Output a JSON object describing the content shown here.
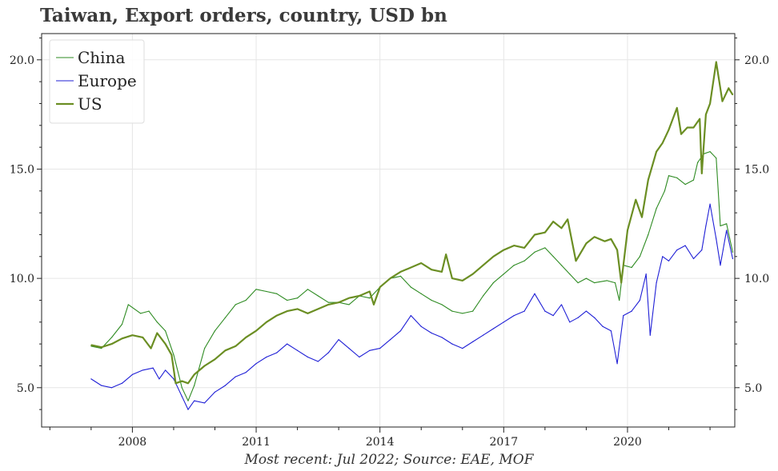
{
  "title": "Taiwan, Export orders, country, USD bn",
  "footnote": "Most recent: Jul 2022; Source: EAE, MOF",
  "chart_data": {
    "type": "line",
    "title": "Taiwan, Export orders, country, USD bn",
    "xlabel": "",
    "ylabel": "",
    "x_range": [
      2005.8,
      2022.6
    ],
    "ylim": [
      3.2,
      21.2
    ],
    "x_ticks": [
      2008,
      2011,
      2014,
      2017,
      2020
    ],
    "y_ticks": [
      5.0,
      10.0,
      15.0,
      20.0
    ],
    "x_tick_labels": [
      "2008",
      "2011",
      "2014",
      "2017",
      "2020"
    ],
    "y_tick_labels": [
      "5.0",
      "10.0",
      "15.0",
      "20.0"
    ],
    "grid": true,
    "legend_position": "top-left",
    "series": [
      {
        "name": "China",
        "color": "#2e8b22",
        "width": 1.1,
        "points": [
          [
            2007.0,
            6.9
          ],
          [
            2007.25,
            6.8
          ],
          [
            2007.5,
            7.3
          ],
          [
            2007.75,
            7.9
          ],
          [
            2007.9,
            8.8
          ],
          [
            2008.2,
            8.4
          ],
          [
            2008.4,
            8.5
          ],
          [
            2008.6,
            8.0
          ],
          [
            2008.8,
            7.6
          ],
          [
            2009.0,
            6.5
          ],
          [
            2009.2,
            5.0
          ],
          [
            2009.35,
            4.4
          ],
          [
            2009.5,
            5.1
          ],
          [
            2009.75,
            6.8
          ],
          [
            2010.0,
            7.6
          ],
          [
            2010.25,
            8.2
          ],
          [
            2010.5,
            8.8
          ],
          [
            2010.75,
            9.0
          ],
          [
            2011.0,
            9.5
          ],
          [
            2011.25,
            9.4
          ],
          [
            2011.5,
            9.3
          ],
          [
            2011.75,
            9.0
          ],
          [
            2012.0,
            9.1
          ],
          [
            2012.25,
            9.5
          ],
          [
            2012.5,
            9.2
          ],
          [
            2012.75,
            8.9
          ],
          [
            2013.0,
            8.9
          ],
          [
            2013.25,
            8.8
          ],
          [
            2013.5,
            9.2
          ],
          [
            2013.75,
            9.1
          ],
          [
            2014.0,
            9.6
          ],
          [
            2014.25,
            10.0
          ],
          [
            2014.5,
            10.1
          ],
          [
            2014.75,
            9.6
          ],
          [
            2015.0,
            9.3
          ],
          [
            2015.25,
            9.0
          ],
          [
            2015.5,
            8.8
          ],
          [
            2015.75,
            8.5
          ],
          [
            2016.0,
            8.4
          ],
          [
            2016.25,
            8.5
          ],
          [
            2016.5,
            9.2
          ],
          [
            2016.75,
            9.8
          ],
          [
            2017.0,
            10.2
          ],
          [
            2017.25,
            10.6
          ],
          [
            2017.5,
            10.8
          ],
          [
            2017.75,
            11.2
          ],
          [
            2018.0,
            11.4
          ],
          [
            2018.2,
            11.0
          ],
          [
            2018.4,
            10.6
          ],
          [
            2018.6,
            10.2
          ],
          [
            2018.8,
            9.8
          ],
          [
            2019.0,
            10.0
          ],
          [
            2019.2,
            9.8
          ],
          [
            2019.5,
            9.9
          ],
          [
            2019.7,
            9.8
          ],
          [
            2019.8,
            9.0
          ],
          [
            2019.9,
            10.6
          ],
          [
            2020.1,
            10.5
          ],
          [
            2020.3,
            11.0
          ],
          [
            2020.5,
            12.0
          ],
          [
            2020.7,
            13.2
          ],
          [
            2020.9,
            14.0
          ],
          [
            2021.0,
            14.7
          ],
          [
            2021.2,
            14.6
          ],
          [
            2021.4,
            14.3
          ],
          [
            2021.6,
            14.5
          ],
          [
            2021.7,
            15.3
          ],
          [
            2021.85,
            15.7
          ],
          [
            2022.0,
            15.8
          ],
          [
            2022.15,
            15.5
          ],
          [
            2022.25,
            12.4
          ],
          [
            2022.4,
            12.5
          ],
          [
            2022.55,
            11.2
          ]
        ]
      },
      {
        "name": "Europe",
        "color": "#1f1fd6",
        "width": 1.1,
        "points": [
          [
            2007.0,
            5.4
          ],
          [
            2007.25,
            5.1
          ],
          [
            2007.5,
            5.0
          ],
          [
            2007.75,
            5.2
          ],
          [
            2008.0,
            5.6
          ],
          [
            2008.25,
            5.8
          ],
          [
            2008.5,
            5.9
          ],
          [
            2008.65,
            5.4
          ],
          [
            2008.8,
            5.8
          ],
          [
            2009.0,
            5.4
          ],
          [
            2009.2,
            4.6
          ],
          [
            2009.35,
            4.0
          ],
          [
            2009.5,
            4.4
          ],
          [
            2009.75,
            4.3
          ],
          [
            2010.0,
            4.8
          ],
          [
            2010.25,
            5.1
          ],
          [
            2010.5,
            5.5
          ],
          [
            2010.75,
            5.7
          ],
          [
            2011.0,
            6.1
          ],
          [
            2011.25,
            6.4
          ],
          [
            2011.5,
            6.6
          ],
          [
            2011.75,
            7.0
          ],
          [
            2012.0,
            6.7
          ],
          [
            2012.25,
            6.4
          ],
          [
            2012.5,
            6.2
          ],
          [
            2012.75,
            6.6
          ],
          [
            2013.0,
            7.2
          ],
          [
            2013.25,
            6.8
          ],
          [
            2013.5,
            6.4
          ],
          [
            2013.75,
            6.7
          ],
          [
            2014.0,
            6.8
          ],
          [
            2014.25,
            7.2
          ],
          [
            2014.5,
            7.6
          ],
          [
            2014.75,
            8.3
          ],
          [
            2015.0,
            7.8
          ],
          [
            2015.25,
            7.5
          ],
          [
            2015.5,
            7.3
          ],
          [
            2015.75,
            7.0
          ],
          [
            2016.0,
            6.8
          ],
          [
            2016.25,
            7.1
          ],
          [
            2016.5,
            7.4
          ],
          [
            2016.75,
            7.7
          ],
          [
            2017.0,
            8.0
          ],
          [
            2017.25,
            8.3
          ],
          [
            2017.5,
            8.5
          ],
          [
            2017.75,
            9.3
          ],
          [
            2018.0,
            8.5
          ],
          [
            2018.2,
            8.3
          ],
          [
            2018.4,
            8.8
          ],
          [
            2018.6,
            8.0
          ],
          [
            2018.8,
            8.2
          ],
          [
            2019.0,
            8.5
          ],
          [
            2019.2,
            8.2
          ],
          [
            2019.4,
            7.8
          ],
          [
            2019.6,
            7.6
          ],
          [
            2019.75,
            6.1
          ],
          [
            2019.9,
            8.3
          ],
          [
            2020.1,
            8.5
          ],
          [
            2020.3,
            9.0
          ],
          [
            2020.45,
            10.2
          ],
          [
            2020.55,
            7.4
          ],
          [
            2020.7,
            9.8
          ],
          [
            2020.85,
            11.0
          ],
          [
            2021.0,
            10.8
          ],
          [
            2021.2,
            11.3
          ],
          [
            2021.4,
            11.5
          ],
          [
            2021.6,
            10.9
          ],
          [
            2021.8,
            11.3
          ],
          [
            2021.9,
            12.4
          ],
          [
            2022.0,
            13.4
          ],
          [
            2022.15,
            11.8
          ],
          [
            2022.25,
            10.6
          ],
          [
            2022.4,
            12.2
          ],
          [
            2022.55,
            10.9
          ]
        ]
      },
      {
        "name": "US",
        "color": "#6b8e23",
        "width": 2.2,
        "points": [
          [
            2007.0,
            6.95
          ],
          [
            2007.25,
            6.85
          ],
          [
            2007.5,
            7.0
          ],
          [
            2007.75,
            7.25
          ],
          [
            2008.0,
            7.4
          ],
          [
            2008.25,
            7.3
          ],
          [
            2008.45,
            6.8
          ],
          [
            2008.6,
            7.5
          ],
          [
            2008.8,
            7.0
          ],
          [
            2008.95,
            6.5
          ],
          [
            2009.05,
            5.2
          ],
          [
            2009.2,
            5.3
          ],
          [
            2009.35,
            5.2
          ],
          [
            2009.5,
            5.6
          ],
          [
            2009.75,
            6.0
          ],
          [
            2010.0,
            6.3
          ],
          [
            2010.25,
            6.7
          ],
          [
            2010.5,
            6.9
          ],
          [
            2010.75,
            7.3
          ],
          [
            2011.0,
            7.6
          ],
          [
            2011.25,
            8.0
          ],
          [
            2011.5,
            8.3
          ],
          [
            2011.75,
            8.5
          ],
          [
            2012.0,
            8.6
          ],
          [
            2012.25,
            8.4
          ],
          [
            2012.5,
            8.6
          ],
          [
            2012.75,
            8.8
          ],
          [
            2013.0,
            8.9
          ],
          [
            2013.25,
            9.1
          ],
          [
            2013.5,
            9.2
          ],
          [
            2013.75,
            9.4
          ],
          [
            2013.85,
            8.8
          ],
          [
            2014.0,
            9.6
          ],
          [
            2014.25,
            10.0
          ],
          [
            2014.5,
            10.3
          ],
          [
            2014.75,
            10.5
          ],
          [
            2015.0,
            10.7
          ],
          [
            2015.25,
            10.4
          ],
          [
            2015.5,
            10.3
          ],
          [
            2015.6,
            11.1
          ],
          [
            2015.75,
            10.0
          ],
          [
            2016.0,
            9.9
          ],
          [
            2016.25,
            10.2
          ],
          [
            2016.5,
            10.6
          ],
          [
            2016.75,
            11.0
          ],
          [
            2017.0,
            11.3
          ],
          [
            2017.25,
            11.5
          ],
          [
            2017.5,
            11.4
          ],
          [
            2017.75,
            12.0
          ],
          [
            2018.0,
            12.1
          ],
          [
            2018.2,
            12.6
          ],
          [
            2018.4,
            12.3
          ],
          [
            2018.55,
            12.7
          ],
          [
            2018.75,
            10.8
          ],
          [
            2019.0,
            11.6
          ],
          [
            2019.2,
            11.9
          ],
          [
            2019.45,
            11.7
          ],
          [
            2019.6,
            11.8
          ],
          [
            2019.75,
            11.3
          ],
          [
            2019.85,
            9.8
          ],
          [
            2020.0,
            12.2
          ],
          [
            2020.2,
            13.6
          ],
          [
            2020.35,
            12.8
          ],
          [
            2020.5,
            14.5
          ],
          [
            2020.7,
            15.8
          ],
          [
            2020.85,
            16.2
          ],
          [
            2021.0,
            16.8
          ],
          [
            2021.2,
            17.8
          ],
          [
            2021.3,
            16.6
          ],
          [
            2021.45,
            16.9
          ],
          [
            2021.6,
            16.9
          ],
          [
            2021.75,
            17.3
          ],
          [
            2021.8,
            14.8
          ],
          [
            2021.9,
            17.5
          ],
          [
            2022.0,
            18.0
          ],
          [
            2022.15,
            19.9
          ],
          [
            2022.3,
            18.1
          ],
          [
            2022.45,
            18.7
          ],
          [
            2022.55,
            18.4
          ]
        ]
      }
    ]
  }
}
